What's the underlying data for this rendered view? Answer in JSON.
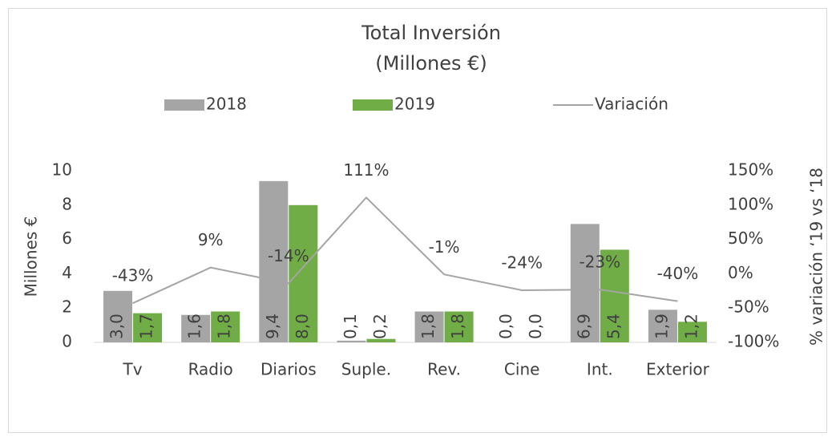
{
  "chart_data": {
    "type": "bar",
    "title": [
      "Total Inversión",
      "(Millones €)"
    ],
    "categories": [
      "Tv",
      "Radio",
      "Diarios",
      "Suple.",
      "Rev.",
      "Cine",
      "Int.",
      "Exterior"
    ],
    "series": [
      {
        "name": "2018",
        "color": "#a5a5a5",
        "values": [
          3.0,
          1.6,
          9.4,
          0.1,
          1.8,
          0.0,
          6.9,
          1.9
        ],
        "value_labels": [
          "3,0",
          "1,6",
          "9,4",
          "0,1",
          "1,8",
          "0,0",
          "6,9",
          "1,9"
        ]
      },
      {
        "name": "2019",
        "color": "#70ad47",
        "values": [
          1.7,
          1.8,
          8.0,
          0.2,
          1.8,
          0.0,
          5.4,
          1.2
        ],
        "value_labels": [
          "1,7",
          "1,8",
          "8,0",
          "0,2",
          "1,8",
          "0,0",
          "5,4",
          "1,2"
        ]
      },
      {
        "name": "Variación",
        "type": "line",
        "axis": "y2",
        "color": "#a5a5a5",
        "values": [
          -43,
          9,
          -14,
          111,
          -1,
          -24,
          -23,
          -40
        ],
        "value_labels": [
          "-43%",
          "9%",
          "-14%",
          "111%",
          "-1%",
          "-24%",
          "-23%",
          "-40%"
        ]
      }
    ],
    "ylabel": "Millones €",
    "y2label": "% variación ‘19 vs ‘18",
    "ylim": [
      0,
      10
    ],
    "yticks": [
      0,
      2,
      4,
      6,
      8,
      10
    ],
    "y2lim": [
      -100,
      150
    ],
    "y2ticks": [
      {
        "value": -100,
        "label": "-100%"
      },
      {
        "value": -50,
        "label": "-50%"
      },
      {
        "value": 0,
        "label": "0%"
      },
      {
        "value": 50,
        "label": "50%"
      },
      {
        "value": 100,
        "label": "100%"
      },
      {
        "value": 150,
        "label": "150%"
      }
    ],
    "legend": "top",
    "grid": false
  }
}
